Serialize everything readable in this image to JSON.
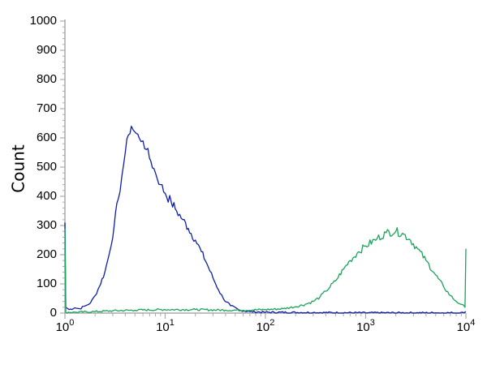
{
  "chart_data": {
    "type": "line",
    "title": "",
    "xlabel": "",
    "ylabel": "Count",
    "xscale": "log",
    "xlim": [
      1,
      10000
    ],
    "ylim": [
      0,
      1000
    ],
    "grid": false,
    "legend": "none",
    "x_ticks": [
      {
        "value": 1,
        "base": "10",
        "exp": "0"
      },
      {
        "value": 10,
        "base": "10",
        "exp": "1"
      },
      {
        "value": 100,
        "base": "10",
        "exp": "2"
      },
      {
        "value": 1000,
        "base": "10",
        "exp": "3"
      },
      {
        "value": 10000,
        "base": "10",
        "exp": "4"
      }
    ],
    "y_ticks": [
      "0",
      "100",
      "200",
      "300",
      "400",
      "500",
      "600",
      "700",
      "800",
      "900",
      "1000"
    ],
    "series": [
      {
        "color": "#0f1ea8",
        "points": [
          [
            1,
            310
          ],
          [
            1.02,
            20
          ],
          [
            1.1,
            12
          ],
          [
            1.25,
            18
          ],
          [
            1.4,
            15
          ],
          [
            1.6,
            25
          ],
          [
            1.8,
            35
          ],
          [
            2.0,
            60
          ],
          [
            2.2,
            90
          ],
          [
            2.5,
            140
          ],
          [
            2.8,
            210
          ],
          [
            3.1,
            300
          ],
          [
            3.4,
            390
          ],
          [
            3.7,
            470
          ],
          [
            4.0,
            550
          ],
          [
            4.3,
            610
          ],
          [
            4.6,
            640
          ],
          [
            5.0,
            620
          ],
          [
            5.5,
            600
          ],
          [
            6.0,
            590
          ],
          [
            6.5,
            560
          ],
          [
            7.2,
            520
          ],
          [
            8.0,
            480
          ],
          [
            9.0,
            440
          ],
          [
            10,
            410
          ],
          [
            11.5,
            380
          ],
          [
            13,
            350
          ],
          [
            15,
            320
          ],
          [
            17,
            290
          ],
          [
            20,
            250
          ],
          [
            23,
            210
          ],
          [
            26,
            170
          ],
          [
            30,
            120
          ],
          [
            34,
            80
          ],
          [
            38,
            50
          ],
          [
            45,
            25
          ],
          [
            55,
            10
          ],
          [
            70,
            5
          ],
          [
            100,
            3
          ],
          [
            300,
            2
          ],
          [
            1000,
            1
          ],
          [
            5000,
            1
          ],
          [
            9500,
            1
          ],
          [
            10000,
            5
          ]
        ]
      },
      {
        "color": "#1aa45a",
        "points": [
          [
            1,
            290
          ],
          [
            1.02,
            3
          ],
          [
            1.3,
            3
          ],
          [
            2,
            5
          ],
          [
            3,
            8
          ],
          [
            5,
            10
          ],
          [
            10,
            12
          ],
          [
            20,
            12
          ],
          [
            40,
            10
          ],
          [
            60,
            10
          ],
          [
            100,
            12
          ],
          [
            150,
            15
          ],
          [
            200,
            22
          ],
          [
            250,
            30
          ],
          [
            300,
            40
          ],
          [
            350,
            55
          ],
          [
            400,
            75
          ],
          [
            500,
            110
          ],
          [
            600,
            150
          ],
          [
            700,
            180
          ],
          [
            850,
            210
          ],
          [
            1000,
            230
          ],
          [
            1300,
            255
          ],
          [
            1600,
            275
          ],
          [
            2000,
            280
          ],
          [
            2400,
            270
          ],
          [
            2800,
            250
          ],
          [
            3300,
            220
          ],
          [
            4000,
            180
          ],
          [
            5000,
            130
          ],
          [
            6000,
            90
          ],
          [
            7000,
            60
          ],
          [
            8000,
            40
          ],
          [
            9000,
            30
          ],
          [
            9800,
            20
          ],
          [
            10000,
            220
          ]
        ]
      }
    ]
  }
}
